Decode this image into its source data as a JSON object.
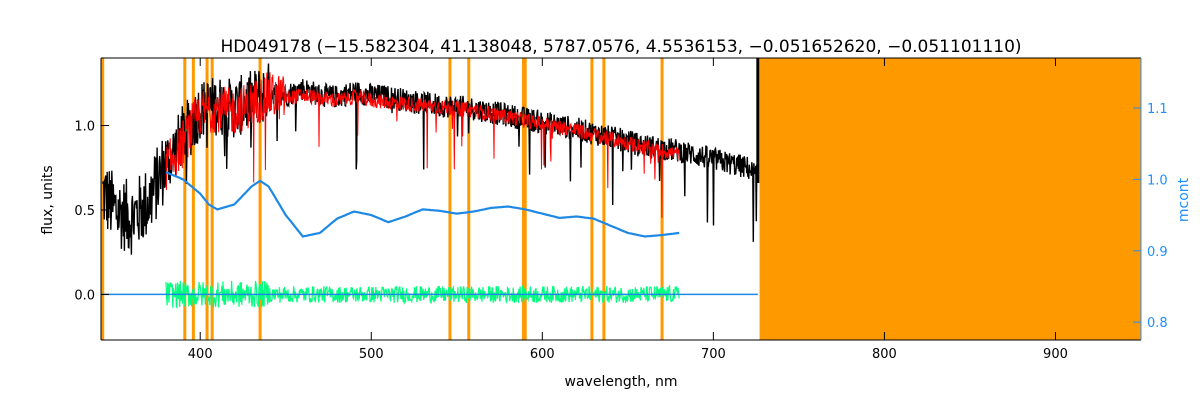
{
  "chart_data": {
    "type": "line",
    "title": "HD049178    (−15.582304, 41.138048, 5787.0576, 4.5536153, −0.051652620, −0.051101110)",
    "xlabel": "wavelength, nm",
    "ylabel": "flux, units",
    "y2label": "mcont",
    "xlim": [
      342,
      950
    ],
    "ylim": [
      -0.27,
      1.4
    ],
    "y2lim": [
      0.775,
      1.17
    ],
    "x_ticks": [
      400,
      500,
      600,
      700,
      800,
      900
    ],
    "y_ticks": [
      0.0,
      0.5,
      1.0
    ],
    "y_tick_labels": [
      "0.0",
      "0.5",
      "1.0"
    ],
    "y2_ticks": [
      0.8,
      0.9,
      1.0,
      1.1
    ],
    "y2_tick_labels": [
      "0.8",
      "0.9",
      "1.0",
      "1.1"
    ],
    "grid": false,
    "colors": {
      "observed": "#000000",
      "model": "#ff0000",
      "continuum": "#1e88e5",
      "residuals": "#00ff7f",
      "masked": "#ff9900",
      "axes": "#000000",
      "right_axis": "#1e90ff"
    },
    "masked_lines_nm": [
      343,
      391,
      396,
      404,
      407,
      435,
      546,
      557,
      589,
      590,
      629,
      636,
      670
    ],
    "masked_region_nm": [
      727,
      950
    ],
    "series": [
      {
        "role": "observed",
        "x": [
          343,
          350,
          360,
          370,
          380,
          385,
          390,
          395,
          400,
          410,
          420,
          430,
          440,
          450,
          460,
          470,
          480,
          490,
          500,
          510,
          520,
          540,
          560,
          580,
          600,
          620,
          640,
          660,
          680,
          700,
          720,
          726
        ],
        "y": [
          0.6,
          0.5,
          0.45,
          0.55,
          0.78,
          0.85,
          0.95,
          1.0,
          1.1,
          1.12,
          1.1,
          1.15,
          1.2,
          1.18,
          1.22,
          1.18,
          1.17,
          1.2,
          1.18,
          1.17,
          1.15,
          1.12,
          1.1,
          1.06,
          1.02,
          0.98,
          0.93,
          0.88,
          0.85,
          0.8,
          0.75,
          0.7
        ]
      },
      {
        "role": "model",
        "x": [
          380,
          390,
          400,
          410,
          420,
          430,
          440,
          450,
          460,
          470,
          480,
          490,
          500,
          510,
          520,
          540,
          560,
          580,
          600,
          620,
          640,
          660,
          680
        ],
        "y": [
          0.75,
          0.9,
          1.08,
          1.1,
          1.08,
          1.13,
          1.18,
          1.16,
          1.18,
          1.16,
          1.15,
          1.17,
          1.15,
          1.14,
          1.13,
          1.11,
          1.09,
          1.05,
          1.01,
          0.97,
          0.92,
          0.87,
          0.83
        ]
      },
      {
        "role": "continuum",
        "x": [
          380,
          390,
          400,
          405,
          410,
          420,
          430,
          435,
          440,
          450,
          460,
          470,
          480,
          490,
          500,
          510,
          520,
          530,
          540,
          550,
          560,
          570,
          580,
          590,
          600,
          610,
          620,
          630,
          640,
          650,
          660,
          670,
          680
        ],
        "y": [
          1.01,
          1.0,
          0.98,
          0.965,
          0.958,
          0.965,
          0.99,
          0.998,
          0.99,
          0.95,
          0.92,
          0.925,
          0.945,
          0.955,
          0.95,
          0.94,
          0.948,
          0.958,
          0.956,
          0.952,
          0.955,
          0.96,
          0.962,
          0.958,
          0.952,
          0.946,
          0.948,
          0.945,
          0.935,
          0.925,
          0.92,
          0.922,
          0.925
        ]
      },
      {
        "role": "residuals",
        "x": [
          380,
          680
        ],
        "y": [
          0.0,
          0.0
        ]
      }
    ]
  }
}
